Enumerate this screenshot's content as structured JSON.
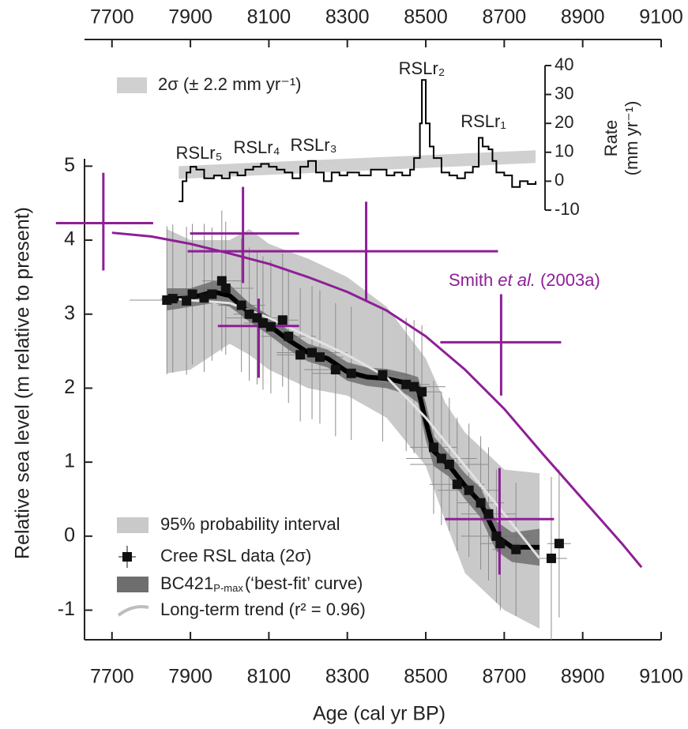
{
  "chart_data": [
    {
      "type": "scatter",
      "xlabel": "Age (cal yr BP)",
      "ylabel": "Relative sea level (m relative to present)",
      "xlim": [
        7630,
        9100
      ],
      "xticks": [
        7700,
        7900,
        8100,
        8300,
        8500,
        8700,
        8900,
        9100
      ],
      "ylim": [
        -1.4,
        5.1
      ],
      "yticks": [
        -1,
        0,
        1,
        2,
        3,
        4,
        5
      ],
      "series": [
        {
          "type": "band",
          "name": "95% probability interval",
          "color": "#c9c9c9",
          "x": [
            7840,
            7900,
            8000,
            8050,
            8100,
            8200,
            8300,
            8400,
            8500,
            8550,
            8600,
            8700,
            8790
          ],
          "lower": [
            2.2,
            2.25,
            2.6,
            2.45,
            2.25,
            2.0,
            1.9,
            1.6,
            0.95,
            0.2,
            -0.5,
            -1.0,
            -1.25
          ],
          "upper": [
            4.15,
            4.0,
            4.0,
            4.15,
            3.95,
            3.75,
            3.5,
            3.1,
            2.4,
            1.8,
            1.4,
            0.9,
            0.85
          ]
        },
        {
          "type": "scatter",
          "name": "Cree RSL data (2σ)",
          "color": "#111111",
          "error_color": "#8c8c8c",
          "x": [
            7840,
            7855,
            7890,
            7905,
            7935,
            7955,
            7980,
            7990,
            8030,
            8050,
            8070,
            8085,
            8105,
            8135,
            8150,
            8180,
            8210,
            8230,
            8270,
            8310,
            8390,
            8450,
            8470,
            8490,
            8520,
            8540,
            8560,
            8580,
            8610,
            8640,
            8660,
            8680,
            8690,
            8730,
            8820,
            8840
          ],
          "values": [
            3.19,
            3.21,
            3.18,
            3.27,
            3.22,
            3.27,
            3.45,
            3.35,
            3.12,
            3.0,
            2.95,
            2.88,
            2.83,
            2.92,
            2.7,
            2.45,
            2.48,
            2.42,
            2.25,
            2.2,
            2.18,
            2.05,
            2.02,
            1.95,
            1.2,
            1.05,
            0.97,
            0.7,
            0.62,
            0.45,
            0.3,
            0.0,
            -0.1,
            -0.18,
            -0.3,
            -0.1
          ],
          "xerr": [
            95,
            30,
            50,
            40,
            60,
            40,
            50,
            70,
            60,
            40,
            80,
            50,
            60,
            40,
            70,
            60,
            90,
            60,
            80,
            100,
            70,
            60,
            80,
            50,
            60,
            90,
            100,
            70,
            80,
            60,
            70,
            90,
            50,
            60,
            40,
            30
          ],
          "yerr": [
            1.0,
            1.0,
            1.0,
            0.95,
            1.0,
            0.9,
            0.95,
            0.9,
            0.9,
            0.9,
            0.9,
            0.9,
            0.9,
            0.9,
            0.9,
            0.9,
            0.9,
            0.9,
            0.9,
            0.9,
            0.9,
            0.9,
            0.9,
            0.9,
            0.9,
            0.9,
            0.9,
            0.9,
            0.9,
            0.9,
            0.9,
            0.9,
            0.9,
            0.9,
            1.1,
            1.0
          ]
        },
        {
          "type": "line",
          "name": "BC421",
          "name_sub": "P-max",
          "name_rest": "(‘best-fit’ curve)",
          "color": "#000000",
          "band_color": "#6e6e6e",
          "x": [
            7840,
            7900,
            7960,
            8000,
            8050,
            8100,
            8150,
            8200,
            8250,
            8300,
            8350,
            8400,
            8450,
            8480,
            8500,
            8520,
            8560,
            8600,
            8640,
            8680,
            8720,
            8790
          ],
          "values": [
            3.2,
            3.22,
            3.3,
            3.25,
            3.02,
            2.85,
            2.65,
            2.48,
            2.4,
            2.22,
            2.15,
            2.13,
            2.07,
            2.0,
            1.55,
            1.15,
            0.95,
            0.68,
            0.45,
            0.0,
            -0.15,
            -0.15
          ],
          "lower": [
            3.05,
            3.1,
            3.15,
            3.1,
            2.9,
            2.72,
            2.52,
            2.36,
            2.28,
            2.1,
            2.03,
            2.0,
            1.92,
            1.8,
            1.3,
            0.95,
            0.8,
            0.5,
            0.25,
            -0.2,
            -0.35,
            -0.4
          ],
          "upper": [
            3.35,
            3.35,
            3.45,
            3.4,
            3.15,
            2.98,
            2.78,
            2.6,
            2.52,
            2.35,
            2.28,
            2.26,
            2.2,
            2.15,
            1.8,
            1.35,
            1.1,
            0.85,
            0.65,
            0.2,
            0.05,
            0.1
          ]
        },
        {
          "type": "line",
          "name": "Long-term trend (r² = 0.96)",
          "color": "#e2e2e2",
          "x": [
            7870,
            8000,
            8100,
            8200,
            8300,
            8400,
            8500,
            8600,
            8700,
            8790
          ],
          "values": [
            3.2,
            3.15,
            2.95,
            2.7,
            2.45,
            2.15,
            1.6,
            0.95,
            0.3,
            -0.3
          ]
        },
        {
          "type": "line",
          "color": "#8e1f96",
          "x": [
            7700,
            7800,
            7900,
            8000,
            8100,
            8200,
            8300,
            8400,
            8500,
            8600,
            8700,
            8800,
            8900,
            9000,
            9050
          ],
          "values": [
            4.1,
            4.05,
            3.95,
            3.82,
            3.68,
            3.5,
            3.3,
            3.05,
            2.7,
            2.25,
            1.72,
            1.1,
            0.5,
            -0.1,
            -0.42
          ]
        },
        {
          "type": "cross",
          "color": "#8e1f96",
          "x": [
            7678,
            8034,
            8348,
            8074,
            8692,
            8688
          ],
          "values": [
            4.23,
            4.09,
            3.85,
            2.84,
            2.62,
            0.23
          ],
          "xlow": [
            7557,
            7899,
            7893,
            7970,
            8537,
            8549
          ],
          "xhigh": [
            7805,
            8177,
            8684,
            8177,
            8845,
            8827
          ],
          "ylow": [
            3.59,
            3.42,
            3.19,
            2.14,
            1.9,
            -0.52
          ],
          "yhigh": [
            4.91,
            4.72,
            4.52,
            3.21,
            3.27,
            0.92
          ]
        }
      ],
      "annotations": [
        {
          "text": "Smith",
          "italic": "et al.",
          "rest": "(2003a)"
        }
      ]
    },
    {
      "type": "line",
      "xlim": [
        7630,
        9100
      ],
      "xticks": [
        7700,
        7900,
        8100,
        8300,
        8500,
        8700,
        8900,
        9100
      ],
      "ylim": [
        -10,
        40
      ],
      "yticks": [
        -10,
        0,
        10,
        20,
        30,
        40
      ],
      "ylabel": [
        "Rate",
        "(mm yr⁻¹)"
      ],
      "series": [
        {
          "type": "band",
          "name": "2σ  (±  2.2 mm yr⁻¹)",
          "color": "#d0d0d0",
          "x": [
            7870,
            8780
          ],
          "values": [
            3,
            8.5
          ],
          "error": 2.2
        },
        {
          "type": "step",
          "color": "#000000",
          "x": [
            7870,
            7880,
            7890,
            7900,
            7915,
            7935,
            7960,
            7980,
            8000,
            8020,
            8040,
            8060,
            8080,
            8100,
            8120,
            8140,
            8160,
            8180,
            8200,
            8220,
            8240,
            8260,
            8280,
            8300,
            8330,
            8360,
            8400,
            8420,
            8440,
            8460,
            8470,
            8485,
            8490,
            8500,
            8510,
            8520,
            8540,
            8560,
            8580,
            8600,
            8620,
            8635,
            8645,
            8660,
            8670,
            8680,
            8700,
            8720,
            8740,
            8760,
            8780
          ],
          "values": [
            -7,
            0,
            3,
            5,
            4,
            1,
            2,
            1,
            3,
            2,
            4,
            5,
            6,
            5,
            4,
            3,
            1,
            5,
            7,
            3,
            0,
            3,
            2,
            3,
            2,
            4,
            2,
            3,
            2,
            4,
            8,
            20,
            35,
            20,
            12,
            8,
            3,
            2,
            1,
            3,
            5,
            15,
            12,
            11,
            7,
            3,
            2,
            -2,
            0,
            -1,
            0
          ]
        }
      ],
      "annotations": [
        {
          "text": "RSLr₅"
        },
        {
          "text": "RSLr₄"
        },
        {
          "text": "RSLr₃"
        },
        {
          "text": "RSLr₂"
        },
        {
          "text": "RSLr₁"
        }
      ]
    }
  ]
}
